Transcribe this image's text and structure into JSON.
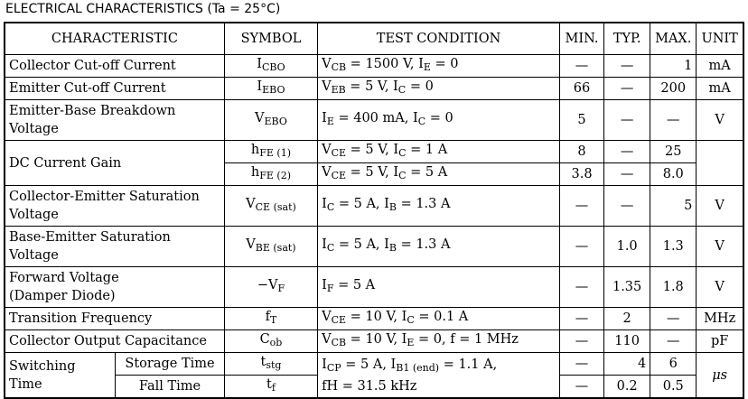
{
  "title": "ELECTRICAL CHARACTERISTICS (Ta = 25°C)",
  "headers": [
    "CHARACTERISTIC",
    "SYMBOL",
    "TEST CONDITION",
    "MIN.",
    "TYP.",
    "MAX.",
    "UNIT"
  ],
  "dash": "—",
  "rows": {
    "icbo": {
      "char": "Collector Cut-off Current",
      "sym_main": "I",
      "sym_sub": "CBO",
      "cond": "V_CB = 1500 V, I_E = 0",
      "min": "—",
      "typ": "—",
      "max": "1",
      "unit": "mA"
    },
    "iebo": {
      "char": "Emitter Cut-off Current",
      "sym_main": "I",
      "sym_sub": "EBO",
      "cond": "V_EB = 5 V, I_C = 0",
      "min": "66",
      "typ": "—",
      "max": "200",
      "unit": "mA"
    },
    "vebo": {
      "char_l1": "Emitter-Base Breakdown",
      "char_l2": "Voltage",
      "sym_main": "V",
      "sym_sub": "EBO",
      "cond": "I_E = 400 mA, I_C = 0",
      "min": "5",
      "typ": "—",
      "max": "—",
      "unit": "V"
    },
    "hfe1": {
      "char": "DC Current Gain",
      "sym_main": "h",
      "sym_sub": "FE (1)",
      "cond": "V_CE = 5 V, I_C = 1 A",
      "min": "8",
      "typ": "—",
      "max": "25",
      "unit": ""
    },
    "hfe2": {
      "sym_main": "h",
      "sym_sub": "FE (2)",
      "cond": "V_CE = 5 V, I_C = 5 A",
      "min": "3.8",
      "typ": "—",
      "max": "8.0"
    },
    "vcesat": {
      "char_l1": "Collector-Emitter Saturation",
      "char_l2": "Voltage",
      "sym_main": "V",
      "sym_sub": "CE (sat)",
      "cond": "I_C = 5 A, I_B = 1.3 A",
      "min": "—",
      "typ": "—",
      "max": "5",
      "unit": "V"
    },
    "vbesat": {
      "char_l1": "Base-Emitter Saturation",
      "char_l2": "Voltage",
      "sym_main": "V",
      "sym_sub": "BE (sat)",
      "cond": "I_C = 5 A, I_B = 1.3 A",
      "min": "—",
      "typ": "1.0",
      "max": "1.3",
      "unit": "V"
    },
    "vf": {
      "char_l1": "Forward Voltage",
      "char_l2": "(Damper Diode)",
      "sym_main": "−V",
      "sym_sub": "F",
      "cond": "I_F = 5 A",
      "min": "—",
      "typ": "1.35",
      "max": "1.8",
      "unit": "V"
    },
    "ft": {
      "char": "Transition Frequency",
      "sym_main": "f",
      "sym_sub": "T",
      "cond": "V_CE = 10 V, I_C = 0.1 A",
      "min": "—",
      "typ": "2",
      "max": "—",
      "unit": "MHz"
    },
    "cob": {
      "char": "Collector Output Capacitance",
      "sym_main": "C",
      "sym_sub": "ob",
      "cond": "V_CB = 10 V, I_E = 0, f = 1 MHz",
      "min": "—",
      "typ": "110",
      "max": "—",
      "unit": "pF"
    },
    "tstg": {
      "char_l1": "Switching",
      "char_l2": "Time",
      "sub_char": "Storage Time",
      "sym_main": "t",
      "sym_sub": "stg",
      "cond_l1": "I_CP = 5 A, I_B1 (end) = 1.1 A,",
      "cond_l2": "fH = 31.5 kHz",
      "min": "—",
      "typ": "4",
      "max": "6",
      "unit": "μs"
    },
    "tf": {
      "sub_char": "Fall Time",
      "sym_main": "t",
      "sym_sub": "f",
      "min": "—",
      "typ": "0.2",
      "max": "0.5"
    }
  }
}
